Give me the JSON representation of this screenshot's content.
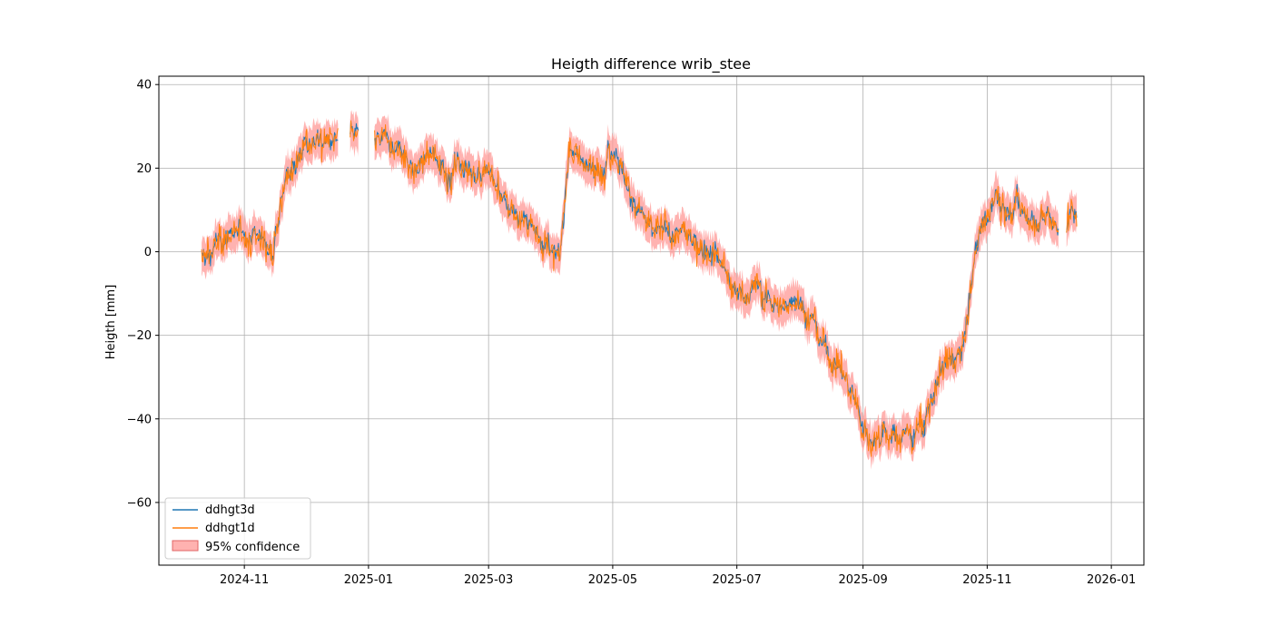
{
  "chart_data": {
    "type": "line",
    "title": "Heigth difference wrib_stee",
    "xlabel": "",
    "ylabel": "Heigth [mm]",
    "xlim": [
      "2024-09-20",
      "2026-01-17"
    ],
    "ylim": [
      -75,
      42
    ],
    "xticks": [
      "2024-11",
      "2025-01",
      "2025-03",
      "2025-05",
      "2025-07",
      "2025-09",
      "2025-11",
      "2026-01"
    ],
    "yticks": [
      40,
      20,
      0,
      -20,
      -40,
      -60
    ],
    "grid": true,
    "legend_position": "lower-left",
    "x": [
      "2024-10-11",
      "2024-10-20",
      "2024-10-30",
      "2024-11-08",
      "2024-11-15",
      "2024-11-22",
      "2024-11-30",
      "2024-12-08",
      "2024-12-15",
      "2025-01-05",
      "2025-01-15",
      "2025-01-25",
      "2025-02-05",
      "2025-02-15",
      "2025-02-25",
      "2025-03-05",
      "2025-03-15",
      "2025-03-25",
      "2025-04-05",
      "2025-04-10",
      "2025-04-20",
      "2025-05-01",
      "2025-05-10",
      "2025-05-20",
      "2025-06-01",
      "2025-06-10",
      "2025-06-20",
      "2025-07-01",
      "2025-07-10",
      "2025-07-20",
      "2025-08-01",
      "2025-08-10",
      "2025-08-20",
      "2025-08-28",
      "2025-09-05",
      "2025-09-15",
      "2025-09-25",
      "2025-10-01",
      "2025-10-10",
      "2025-10-20",
      "2025-10-28",
      "2025-11-05",
      "2025-11-15",
      "2025-11-25",
      "2025-12-05",
      "2025-12-15"
    ],
    "gaps": [
      [
        "2024-12-17",
        "2024-12-23"
      ],
      [
        "2024-12-27",
        "2025-01-04"
      ],
      [
        "2025-12-06",
        "2025-12-10"
      ]
    ],
    "series": [
      {
        "name": "ddhgt3d",
        "color": "#1f77b4",
        "values": [
          -2,
          2,
          4,
          3,
          1,
          20,
          24,
          27,
          27,
          27,
          24,
          20,
          21,
          20,
          19,
          15,
          10,
          5,
          -2,
          25,
          20,
          25,
          15,
          5,
          5,
          3,
          0,
          -10,
          -8,
          -13,
          -12,
          -20,
          -27,
          -35,
          -45,
          -44,
          -44,
          -40,
          -27,
          -24,
          5,
          12,
          10,
          9,
          8,
          9
        ]
      },
      {
        "name": "ddhgt1d",
        "color": "#ff7f0e",
        "values": [
          -2,
          2,
          4,
          3,
          1,
          20,
          24,
          27,
          27,
          27,
          24,
          20,
          21,
          20,
          19,
          15,
          10,
          5,
          -2,
          25,
          20,
          25,
          15,
          5,
          5,
          3,
          0,
          -10,
          -8,
          -13,
          -12,
          -20,
          -27,
          -35,
          -45,
          -44,
          -44,
          -40,
          -27,
          -24,
          5,
          12,
          10,
          9,
          8,
          9
        ]
      }
    ],
    "band": {
      "name": "95% confidence",
      "color": "#ff9896",
      "halfwidth": 4
    }
  }
}
